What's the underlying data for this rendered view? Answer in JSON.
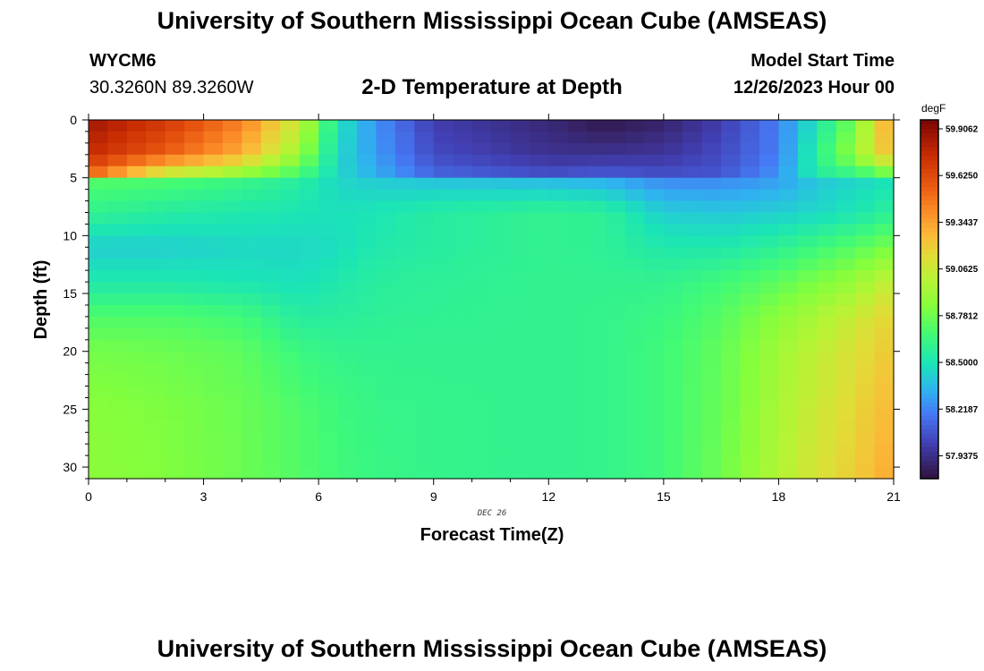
{
  "header": {
    "title": "University of Southern Mississippi Ocean Cube (AMSEAS)",
    "station": "WYCM6",
    "coords": "30.3260N  89.3260W",
    "subtitle": "2-D Temperature at Depth",
    "start_label": "Model Start Time",
    "start_date": "12/26/2023 Hour 00"
  },
  "footer": {
    "title": "University of Southern Mississippi Ocean Cube (AMSEAS)"
  },
  "chart_data": {
    "type": "heatmap",
    "title": "2-D Temperature at Depth",
    "xlabel": "Forecast Time(Z)",
    "ylabel": "Depth (ft)",
    "xlim": [
      0,
      21
    ],
    "ylim": [
      31,
      0
    ],
    "x_ticks": [
      0,
      3,
      6,
      9,
      12,
      15,
      18,
      21
    ],
    "y_ticks": [
      0,
      5,
      10,
      15,
      20,
      25,
      30
    ],
    "x_annotation": "DEC 26",
    "colorbar": {
      "units": "degF",
      "min": 57.8,
      "max": 59.96,
      "tick_labels": [
        "59.9062",
        "59.6250",
        "59.3437",
        "59.0625",
        "58.7812",
        "58.5000",
        "58.2187",
        "57.9375"
      ],
      "tick_values": [
        59.9062,
        59.625,
        59.3437,
        59.0625,
        58.7812,
        58.5,
        58.2187,
        57.9375
      ]
    },
    "grid": false,
    "columns": 42,
    "rows": 31,
    "ref_depths": [
      0,
      3,
      4.5,
      5.5,
      8,
      11,
      14,
      17,
      20,
      25,
      31
    ],
    "ref_times": [
      0,
      2,
      4,
      5.5,
      6.5,
      7.5,
      9,
      12,
      13.5,
      15,
      16.5,
      18,
      19,
      20,
      21
    ],
    "temperature_degF": [
      [
        59.86,
        59.7,
        59.45,
        59.05,
        58.5,
        58.25,
        58.0,
        57.9,
        57.82,
        57.88,
        58.0,
        58.2,
        58.5,
        58.8,
        59.4
      ],
      [
        59.75,
        59.55,
        59.3,
        58.9,
        58.45,
        58.28,
        58.05,
        57.95,
        57.95,
        57.97,
        58.05,
        58.2,
        58.58,
        58.9,
        59.3
      ],
      [
        59.55,
        59.1,
        58.92,
        58.7,
        58.45,
        58.32,
        58.12,
        58.05,
        58.08,
        58.05,
        58.08,
        58.25,
        58.55,
        58.65,
        58.85
      ],
      [
        58.7,
        58.68,
        58.62,
        58.55,
        58.45,
        58.42,
        58.4,
        58.38,
        58.35,
        58.25,
        58.25,
        58.3,
        58.4,
        58.45,
        58.5
      ],
      [
        58.6,
        58.55,
        58.52,
        58.5,
        58.48,
        58.5,
        58.55,
        58.6,
        58.58,
        58.42,
        58.4,
        58.42,
        58.45,
        58.5,
        58.58
      ],
      [
        58.42,
        58.42,
        58.45,
        58.45,
        58.47,
        58.52,
        58.55,
        58.6,
        58.58,
        58.52,
        58.52,
        58.58,
        58.65,
        58.72,
        58.82
      ],
      [
        58.52,
        58.52,
        58.5,
        58.48,
        58.52,
        58.56,
        58.58,
        58.6,
        58.6,
        58.6,
        58.66,
        58.74,
        58.82,
        58.9,
        59.05
      ],
      [
        58.7,
        58.7,
        58.66,
        58.55,
        58.56,
        58.58,
        58.59,
        58.6,
        58.61,
        58.64,
        58.72,
        58.86,
        58.95,
        59.05,
        59.18
      ],
      [
        58.8,
        58.78,
        58.74,
        58.64,
        58.61,
        58.6,
        58.6,
        58.6,
        58.61,
        58.66,
        58.75,
        58.92,
        59.02,
        59.12,
        59.22
      ],
      [
        58.85,
        58.82,
        58.77,
        58.7,
        58.65,
        58.62,
        58.61,
        58.6,
        58.61,
        58.66,
        58.76,
        58.95,
        59.06,
        59.16,
        59.28
      ],
      [
        58.86,
        58.83,
        58.77,
        58.71,
        58.66,
        58.63,
        58.61,
        58.6,
        58.61,
        58.66,
        58.78,
        58.98,
        59.1,
        59.2,
        59.33
      ]
    ]
  }
}
